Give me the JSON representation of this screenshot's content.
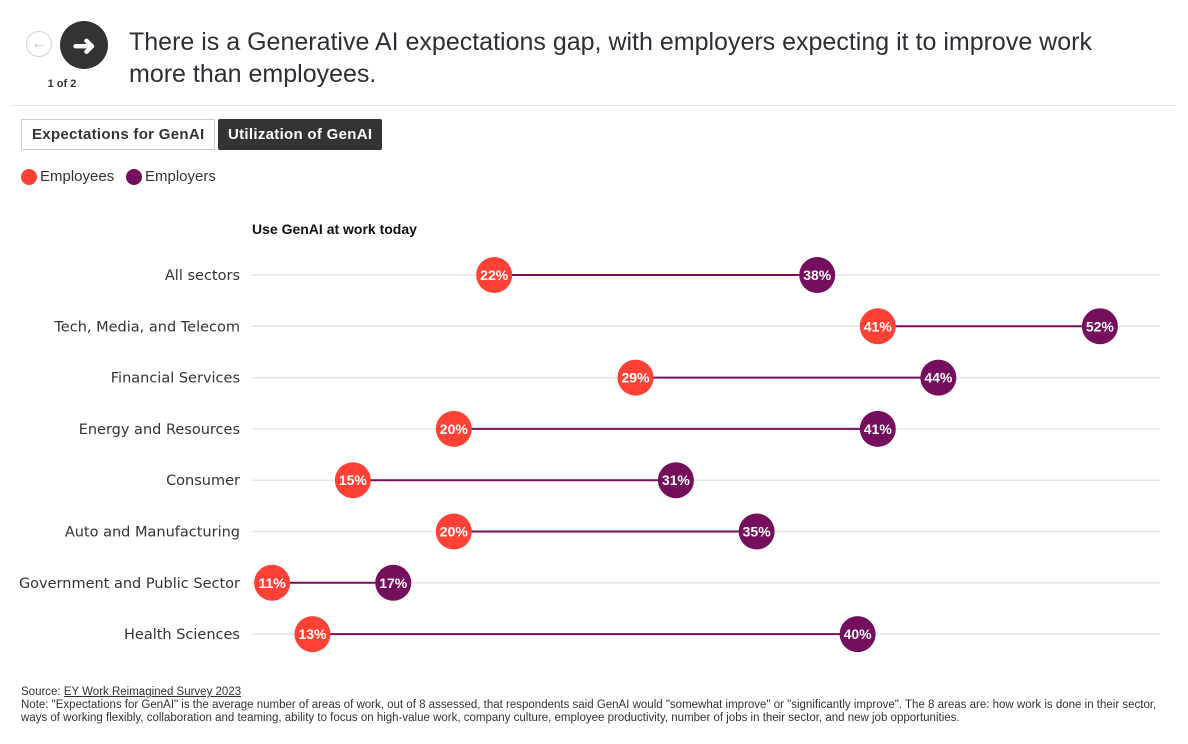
{
  "header": {
    "title": "There is a Generative AI expectations gap, with employers expecting it to improve work more than employees.",
    "pager": "1 of 2",
    "prev_icon": "arrow-left-icon",
    "next_icon": "arrow-right-icon"
  },
  "tabs": [
    {
      "label": "Expectations for GenAI",
      "active": false
    },
    {
      "label": "Utilization of GenAI",
      "active": true
    }
  ],
  "legend": [
    {
      "label": "Employees",
      "color": "#ff4136"
    },
    {
      "label": "Employers",
      "color": "#750e5c"
    }
  ],
  "chart_data": {
    "type": "dumbbell",
    "subtitle": "Use GenAI at work today",
    "categories": [
      "All sectors",
      "Tech, Media, and Telecom",
      "Financial Services",
      "Energy and Resources",
      "Consumer",
      "Auto and Manufacturing",
      "Government and Public Sector",
      "Health Sciences"
    ],
    "series": [
      {
        "name": "Employees",
        "color": "#ff4136",
        "values": [
          22,
          41,
          29,
          20,
          15,
          20,
          11,
          13
        ]
      },
      {
        "name": "Employers",
        "color": "#750e5c",
        "values": [
          38,
          52,
          44,
          41,
          31,
          35,
          17,
          40
        ]
      }
    ],
    "value_suffix": "%"
  },
  "footer": {
    "source_label": "Source: ",
    "source_link": "EY Work Reimagined Survey 2023",
    "note": "Note: \"Expectations for GenAI\" is the average number of areas of work, out of 8 assessed, that respondents said GenAI would \"somewhat improve\" or \"significantly improve\". The 8 areas are: how work is done in their sector, ways of working flexibly, collaboration and teaming, ability to focus on high-value work, company culture, employee productivity, number of jobs in their sector, and new job opportunities."
  }
}
